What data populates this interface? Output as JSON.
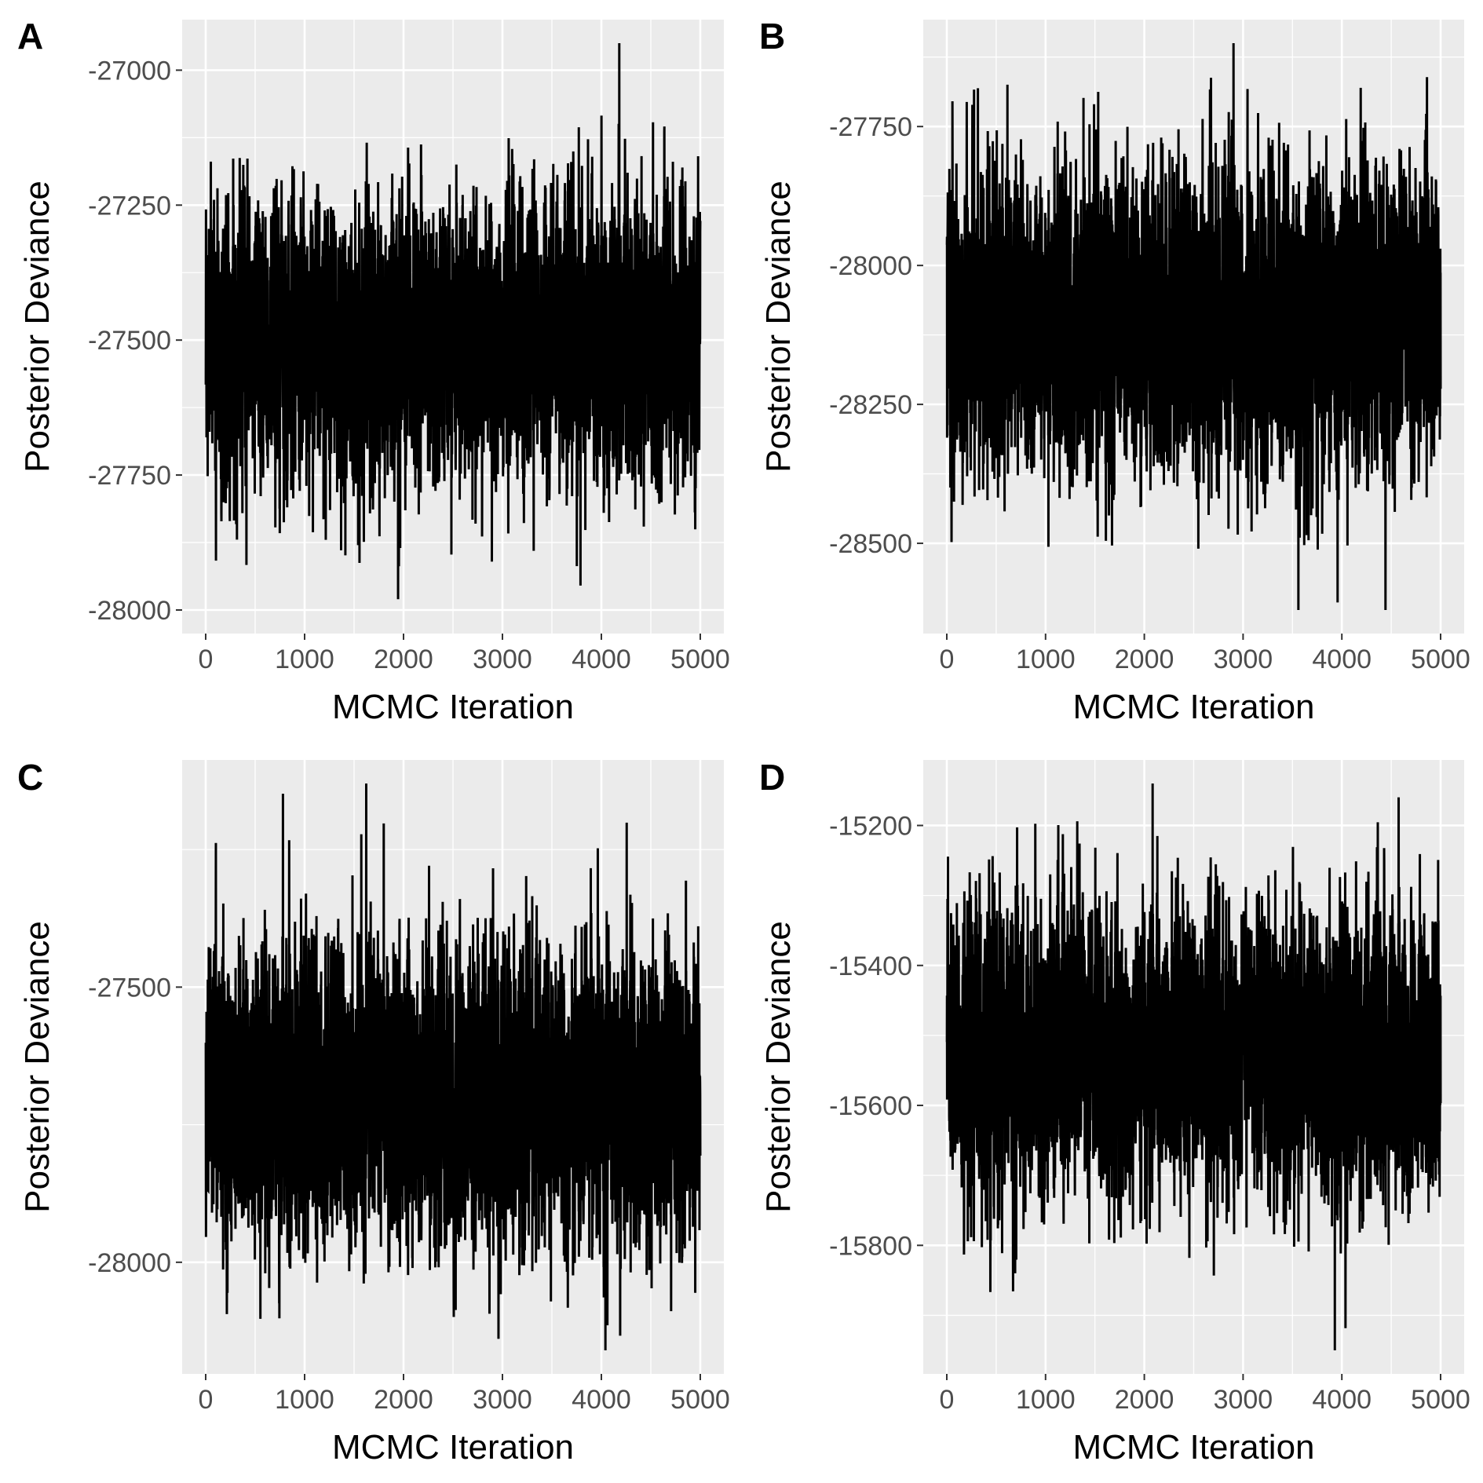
{
  "chart_data": [
    {
      "panel": "A",
      "type": "line",
      "xlabel": "MCMC Iteration",
      "ylabel": "Posterior Deviance",
      "xlim": [
        0,
        5000
      ],
      "ylim": [
        -28000,
        -26950
      ],
      "x_ticks": [
        0,
        1000,
        2000,
        3000,
        4000,
        5000
      ],
      "y_ticks": [
        -27000,
        -27250,
        -27500,
        -27750,
        -28000
      ],
      "x_tick_labels": [
        "0",
        "1000",
        "2000",
        "3000",
        "4000",
        "5000"
      ],
      "y_tick_labels": [
        "-27000",
        "-27250",
        "-27500",
        "-27750",
        "-28000"
      ],
      "series_summary": {
        "iterations": 5000,
        "mean": -27500,
        "min": -27980,
        "max": -26950,
        "typical_low": -27750,
        "typical_high": -27250
      },
      "grid": true,
      "color": "#000000"
    },
    {
      "panel": "B",
      "type": "line",
      "xlabel": "MCMC Iteration",
      "ylabel": "Posterior Deviance",
      "xlim": [
        0,
        5000
      ],
      "ylim": [
        -28620,
        -27600
      ],
      "x_ticks": [
        0,
        1000,
        2000,
        3000,
        4000,
        5000
      ],
      "y_ticks": [
        -27750,
        -28000,
        -28250,
        -28500
      ],
      "x_tick_labels": [
        "0",
        "1000",
        "2000",
        "3000",
        "4000",
        "5000"
      ],
      "y_tick_labels": [
        "-27750",
        "-28000",
        "-28250",
        "-28500"
      ],
      "series_summary": {
        "iterations": 5000,
        "mean": -28100,
        "min": -28620,
        "max": -27600,
        "typical_low": -28380,
        "typical_high": -27850
      },
      "grid": true,
      "color": "#000000"
    },
    {
      "panel": "C",
      "type": "line",
      "xlabel": "MCMC Iteration",
      "ylabel": "Posterior Deviance",
      "xlim": [
        0,
        5000
      ],
      "ylim": [
        -28160,
        -27130
      ],
      "x_ticks": [
        0,
        1000,
        2000,
        3000,
        4000,
        5000
      ],
      "y_ticks": [
        -27500,
        -28000
      ],
      "x_tick_labels": [
        "0",
        "1000",
        "2000",
        "3000",
        "4000",
        "5000"
      ],
      "y_tick_labels": [
        "-27500",
        "-28000"
      ],
      "series_summary": {
        "iterations": 5000,
        "mean": -27700,
        "min": -28160,
        "max": -27130,
        "typical_low": -27950,
        "typical_high": -27430
      },
      "grid": true,
      "color": "#000000"
    },
    {
      "panel": "D",
      "type": "line",
      "xlabel": "MCMC Iteration",
      "ylabel": "Posterior Deviance",
      "xlim": [
        0,
        5000
      ],
      "ylim": [
        -15950,
        -15140
      ],
      "x_ticks": [
        0,
        1000,
        2000,
        3000,
        4000,
        5000
      ],
      "y_ticks": [
        -15200,
        -15400,
        -15600,
        -15800
      ],
      "x_tick_labels": [
        "0",
        "1000",
        "2000",
        "3000",
        "4000",
        "5000"
      ],
      "y_tick_labels": [
        "-15200",
        "-15400",
        "-15600",
        "-15800"
      ],
      "series_summary": {
        "iterations": 5000,
        "mean": -15530,
        "min": -15950,
        "max": -15140,
        "typical_low": -15730,
        "typical_high": -15330
      },
      "grid": true,
      "color": "#000000"
    }
  ]
}
